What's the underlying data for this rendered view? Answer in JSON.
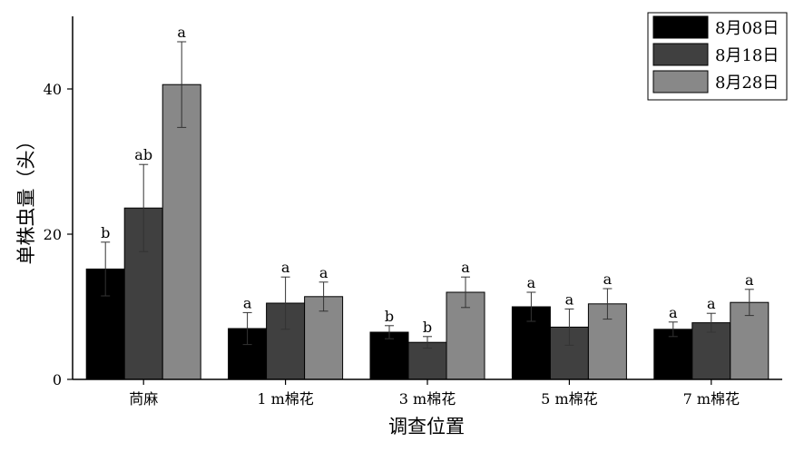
{
  "chart_data": {
    "type": "bar",
    "xlabel": "调查位置",
    "ylabel": "单株虫量（头）",
    "ylim": [
      0,
      50
    ],
    "yticks": [
      0,
      20,
      40
    ],
    "grid": false,
    "legend_position": "top-right",
    "categories": [
      "苘麻",
      "1 m棉花",
      "3 m棉花",
      "5 m棉花",
      "7 m棉花"
    ],
    "series": [
      {
        "name": "8月08日",
        "color": "#000000",
        "values": [
          15.2,
          7.0,
          6.5,
          10.0,
          6.9
        ],
        "errors": [
          3.7,
          2.2,
          0.9,
          2.0,
          1.0
        ],
        "labels": [
          "b",
          "a",
          "b",
          "a",
          "a"
        ]
      },
      {
        "name": "8月18日",
        "color": "#404040",
        "values": [
          23.6,
          10.5,
          5.1,
          7.2,
          7.8
        ],
        "errors": [
          6.0,
          3.6,
          0.8,
          2.5,
          1.3
        ],
        "labels": [
          "ab",
          "a",
          "b",
          "a",
          "a"
        ]
      },
      {
        "name": "8月28日",
        "color": "#888888",
        "values": [
          40.6,
          11.4,
          12.0,
          10.4,
          10.6
        ],
        "errors": [
          5.9,
          2.0,
          2.1,
          2.1,
          1.8
        ],
        "labels": [
          "a",
          "a",
          "a",
          "a",
          "a"
        ]
      }
    ]
  }
}
